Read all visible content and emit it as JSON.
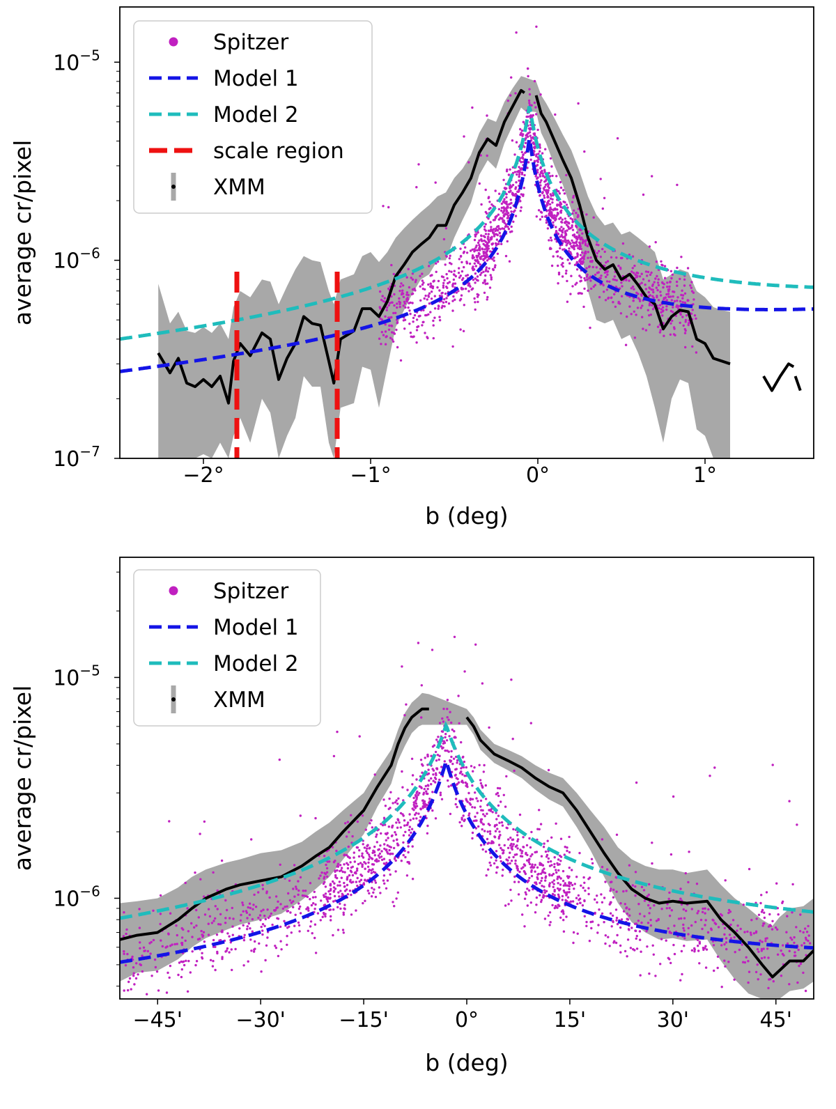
{
  "chart_data": [
    {
      "type": "line",
      "panel": "top",
      "xlabel": "b (deg)",
      "ylabel": "average cr/pixel",
      "xlim": [
        -2.5,
        1.65
      ],
      "ylim": [
        1e-07,
        1.9e-05
      ],
      "yscale": "log",
      "x_ticks": [
        -2,
        -1,
        0,
        1
      ],
      "x_tick_labels": [
        "−2°",
        "−1°",
        "0°",
        "1°"
      ],
      "y_tick_values": [
        1e-07,
        1e-06,
        1e-05
      ],
      "y_tick_labels": [
        {
          "base": "10",
          "exp": "−7"
        },
        {
          "base": "10",
          "exp": "−6"
        },
        {
          "base": "10",
          "exp": "−5"
        }
      ],
      "legend_position": "upper-left",
      "legend": [
        {
          "label": "Spitzer",
          "kind": "marker",
          "color": "#c020c0"
        },
        {
          "label": "Model 1",
          "kind": "dashed",
          "color": "#1414e6"
        },
        {
          "label": "Model 2",
          "kind": "dashed",
          "color": "#1fbcbc"
        },
        {
          "label": "scale region",
          "kind": "dashed",
          "color": "#ee1111"
        },
        {
          "label": "XMM",
          "kind": "errorbar",
          "color": "#000000"
        }
      ],
      "scale_region": [
        -1.8,
        -1.2
      ],
      "series": [
        {
          "name": "XMM",
          "color": "#000000",
          "segments": [
            {
              "x": [
                -2.27,
                -2.2,
                -2.15,
                -2.1,
                -2.05,
                -2.0,
                -1.95,
                -1.9,
                -1.85,
                -1.82,
                -1.78,
                -1.72,
                -1.65,
                -1.6,
                -1.55,
                -1.5,
                -1.45,
                -1.4,
                -1.35,
                -1.3,
                -1.25,
                -1.22,
                -1.18,
                -1.1,
                -1.05,
                -1.0,
                -0.95,
                -0.9,
                -0.85,
                -0.8,
                -0.75,
                -0.7,
                -0.65,
                -0.6,
                -0.55,
                -0.5,
                -0.45,
                -0.4,
                -0.35,
                -0.3,
                -0.25,
                -0.2,
                -0.15,
                -0.1,
                -0.08
              ],
              "y": [
                3.4e-07,
                2.7e-07,
                3.2e-07,
                2.4e-07,
                2.3e-07,
                2.5e-07,
                2.3e-07,
                2.6e-07,
                1.9e-07,
                3.1e-07,
                3.8e-07,
                3.3e-07,
                4.3e-07,
                4e-07,
                2.5e-07,
                3.2e-07,
                3.8e-07,
                5.2e-07,
                4.8e-07,
                4.7e-07,
                3.1e-07,
                2.4e-07,
                4e-07,
                4.4e-07,
                5.7e-07,
                5.7e-07,
                5.2e-07,
                6.2e-07,
                8.3e-07,
                9.5e-07,
                1.1e-06,
                1.2e-06,
                1.3e-06,
                1.5e-06,
                1.5e-06,
                1.9e-06,
                2.2e-06,
                2.6e-06,
                3.5e-06,
                4.1e-06,
                3.8e-06,
                5e-06,
                6e-06,
                7.2e-06,
                7e-06
              ]
            },
            {
              "x": [
                -0.01,
                0.02,
                0.05,
                0.1,
                0.15,
                0.2,
                0.25,
                0.3,
                0.35,
                0.4,
                0.45,
                0.5,
                0.55,
                0.6,
                0.65,
                0.7,
                0.75,
                0.8,
                0.85,
                0.9,
                0.95,
                1.0,
                1.05,
                1.1,
                1.15
              ],
              "y": [
                6.8e-06,
                5.5e-06,
                5e-06,
                4e-06,
                3.2e-06,
                2.6e-06,
                1.9e-06,
                1.3e-06,
                1e-06,
                9e-07,
                9.5e-07,
                8e-07,
                8.5e-07,
                7.5e-07,
                6.5e-07,
                6e-07,
                4.5e-07,
                5.2e-07,
                5.6e-07,
                5.5e-07,
                4e-07,
                3.8e-07,
                3.2e-07,
                3.1e-07,
                3e-07
              ]
            },
            {
              "x": [
                1.35,
                1.4,
                1.45,
                1.5,
                1.53
              ],
              "y": [
                2.6e-07,
                2.2e-07,
                2.6e-07,
                3e-07,
                2.9e-07
              ]
            },
            {
              "x": [
                1.54,
                1.57
              ],
              "y": [
                2.6e-07,
                2.2e-07
              ]
            }
          ]
        },
        {
          "name": "XMM error band",
          "color": "#a8a8a8",
          "x": [
            -2.27,
            -2.2,
            -2.15,
            -2.1,
            -2.05,
            -2.0,
            -1.95,
            -1.9,
            -1.85,
            -1.82,
            -1.78,
            -1.72,
            -1.65,
            -1.6,
            -1.55,
            -1.5,
            -1.45,
            -1.4,
            -1.35,
            -1.3,
            -1.25,
            -1.22,
            -1.18,
            -1.1,
            -1.05,
            -1.0,
            -0.95,
            -0.9,
            -0.85,
            -0.8,
            -0.75,
            -0.7,
            -0.65,
            -0.6,
            -0.55,
            -0.5,
            -0.45,
            -0.4,
            -0.35,
            -0.3,
            -0.25,
            -0.2,
            -0.15,
            -0.1,
            -0.08,
            -0.01,
            0.02,
            0.05,
            0.1,
            0.15,
            0.2,
            0.25,
            0.3,
            0.35,
            0.4,
            0.45,
            0.5,
            0.55,
            0.6,
            0.65,
            0.7,
            0.75,
            0.8,
            0.85,
            0.9,
            0.95,
            1.0,
            1.05,
            1.1,
            1.15
          ],
          "upper": [
            7.6e-07,
            4.8e-07,
            5.5e-07,
            4.4e-07,
            4.3e-07,
            4.6e-07,
            4.3e-07,
            4.8e-07,
            4e-07,
            5.8e-07,
            7e-07,
            6.5e-07,
            8e-07,
            7.8e-07,
            6e-07,
            7.4e-07,
            9e-07,
            1.05e-06,
            1e-06,
            9.8e-07,
            7e-07,
            6e-07,
            8e-07,
            8.5e-07,
            1.05e-06,
            1.1e-06,
            9.8e-07,
            1.1e-06,
            1.3e-06,
            1.45e-06,
            1.6e-06,
            1.75e-06,
            1.9e-06,
            2.1e-06,
            2.2e-06,
            2.6e-06,
            2.9e-06,
            3.4e-06,
            4.4e-06,
            5.2e-06,
            5e-06,
            6.3e-06,
            7.4e-06,
            8.5e-06,
            8.4e-06,
            8e-06,
            6.8e-06,
            6.2e-06,
            5.2e-06,
            4.3e-06,
            3.6e-06,
            2.8e-06,
            2.1e-06,
            1.7e-06,
            1.5e-06,
            1.55e-06,
            1.35e-06,
            1.4e-06,
            1.3e-06,
            1.2e-06,
            1.1e-06,
            8e-07,
            8.5e-07,
            9e-07,
            8.7e-07,
            7e-07,
            6.5e-07,
            5.8e-07,
            5.6e-07,
            5.5e-07
          ],
          "lower": [
            1e-07,
            1e-07,
            1e-07,
            1e-07,
            1e-07,
            1.05e-07,
            1e-07,
            1.2e-07,
            1e-07,
            1.3e-07,
            1.6e-07,
            1.2e-07,
            2e-07,
            1.7e-07,
            1e-07,
            1.3e-07,
            1.6e-07,
            2.6e-07,
            2.3e-07,
            2.3e-07,
            1.2e-07,
            1e-07,
            1.8e-07,
            1.9e-07,
            2.9e-07,
            2.8e-07,
            1.8e-07,
            2.9e-07,
            4.6e-07,
            5.6e-07,
            6.8e-07,
            8e-07,
            8.5e-07,
            1e-06,
            1e-06,
            1.3e-06,
            1.6e-06,
            1.95e-06,
            2.7e-06,
            3.2e-06,
            2.9e-06,
            3.9e-06,
            4.8e-06,
            5.9e-06,
            5.7e-06,
            5.6e-06,
            4.4e-06,
            3.9e-06,
            3e-06,
            2.4e-06,
            1.8e-06,
            1.25e-06,
            7e-07,
            5e-07,
            4.8e-07,
            5e-07,
            4e-07,
            4.2e-07,
            3.4e-07,
            2.6e-07,
            1.8e-07,
            1.2e-07,
            2e-07,
            2.5e-07,
            2.4e-07,
            1.4e-07,
            1.3e-07,
            1e-07,
            1e-07,
            1e-07
          ]
        },
        {
          "name": "Model 1",
          "color": "#1414e6",
          "peak": 4.2e-06,
          "x0": -0.05,
          "xscale": 0.064,
          "power": 0.52,
          "floor": 3.35e-07,
          "floor_slope": 0.088
        },
        {
          "name": "Model 2",
          "color": "#1fbcbc",
          "peak": 6.1e-06,
          "x0": -0.05,
          "xscale": 0.064,
          "power": 0.44,
          "floor": 3.35e-07,
          "floor_slope": 0.088
        },
        {
          "name": "Spitzer",
          "color": "#c020c0",
          "x_range": [
            -0.95,
            0.95
          ],
          "median_of": "Model 1",
          "bias": 1.04,
          "scatter_dex": 0.1,
          "count": 1700
        }
      ]
    },
    {
      "type": "line",
      "panel": "bottom",
      "xlabel": "b (deg)",
      "ylabel": "average cr/pixel",
      "xlim": [
        -50.5,
        50.5
      ],
      "ylim": [
        3.5e-07,
        3.5e-05
      ],
      "yscale": "log",
      "x_ticks": [
        -45,
        -30,
        -15,
        0,
        15,
        30,
        45
      ],
      "x_tick_labels": [
        "−45'",
        "−30'",
        "−15'",
        "0°",
        "15'",
        "30'",
        "45'"
      ],
      "y_tick_values": [
        1e-06,
        1e-05
      ],
      "y_tick_labels": [
        {
          "base": "10",
          "exp": "−6"
        },
        {
          "base": "10",
          "exp": "−5"
        }
      ],
      "legend_position": "upper-left",
      "legend": [
        {
          "label": "Spitzer",
          "kind": "marker",
          "color": "#c020c0"
        },
        {
          "label": "Model 1",
          "kind": "dashed",
          "color": "#1414e6"
        },
        {
          "label": "Model 2",
          "kind": "dashed",
          "color": "#1fbcbc"
        },
        {
          "label": "XMM",
          "kind": "errorbar",
          "color": "#000000"
        }
      ],
      "series": [
        {
          "name": "XMM",
          "color": "#000000",
          "segments": [
            {
              "x": [
                -50.5,
                -48,
                -45,
                -42,
                -40,
                -38,
                -35,
                -33,
                -30,
                -27,
                -24,
                -22,
                -20,
                -18,
                -15,
                -13,
                -11,
                -10,
                -9,
                -8,
                -7,
                -6.5,
                -5.5
              ],
              "y": [
                6.5e-07,
                6.8e-07,
                7e-07,
                8e-07,
                9e-07,
                1e-06,
                1.1e-06,
                1.15e-06,
                1.2e-06,
                1.25e-06,
                1.4e-06,
                1.55e-06,
                1.7e-06,
                2e-06,
                2.5e-06,
                3.2e-06,
                4e-06,
                5e-06,
                5.9e-06,
                6.6e-06,
                7e-06,
                7.2e-06,
                7.2e-06
              ]
            },
            {
              "x": [
                0,
                1,
                2,
                4,
                6,
                8,
                10,
                12,
                14,
                16,
                18,
                20,
                22,
                24,
                26,
                28,
                30,
                32,
                35,
                37,
                39,
                41,
                43,
                44.5,
                45.5,
                47,
                49,
                50.5
              ],
              "y": [
                6.6e-06,
                6e-06,
                5.2e-06,
                4.5e-06,
                4.2e-06,
                3.9e-06,
                3.5e-06,
                3.2e-06,
                3e-06,
                2.5e-06,
                2e-06,
                1.6e-06,
                1.3e-06,
                1.1e-06,
                1e-06,
                9.5e-07,
                9.7e-07,
                9.5e-07,
                9.7e-07,
                8e-07,
                7e-07,
                6e-07,
                5e-07,
                4.4e-07,
                4.7e-07,
                5.2e-07,
                5.2e-07,
                5.8e-07
              ]
            }
          ]
        },
        {
          "name": "XMM error band",
          "color": "#a8a8a8",
          "x": [
            -50.5,
            -48,
            -45,
            -42,
            -40,
            -38,
            -35,
            -33,
            -30,
            -27,
            -24,
            -22,
            -20,
            -18,
            -15,
            -13,
            -11,
            -10,
            -9,
            -8,
            -7,
            -6.5,
            -5.5,
            0,
            1,
            2,
            4,
            6,
            8,
            10,
            12,
            14,
            16,
            18,
            20,
            22,
            24,
            26,
            28,
            30,
            32,
            35,
            37,
            39,
            41,
            43,
            44.5,
            45.5,
            47,
            49,
            50.5
          ],
          "upper": [
            9.5e-07,
            9.7e-07,
            1e-06,
            1.12e-06,
            1.25e-06,
            1.35e-06,
            1.45e-06,
            1.5e-06,
            1.6e-06,
            1.65e-06,
            1.8e-06,
            2e-06,
            2.2e-06,
            2.5e-06,
            3e-06,
            3.8e-06,
            4.7e-06,
            5.8e-06,
            6.9e-06,
            7.7e-06,
            8.2e-06,
            8.5e-06,
            8.4e-06,
            7.2e-06,
            6.6e-06,
            5.8e-06,
            5e-06,
            4.7e-06,
            4.4e-06,
            4e-06,
            3.7e-06,
            3.5e-06,
            3e-06,
            2.5e-06,
            2.1e-06,
            1.7e-06,
            1.5e-06,
            1.4e-06,
            1.35e-06,
            1.35e-06,
            1.3e-06,
            1.35e-06,
            1.15e-06,
            1e-06,
            9e-07,
            8e-07,
            7.5e-07,
            8.2e-07,
            9e-07,
            9.2e-07,
            1e-06
          ],
          "lower": [
            4.2e-07,
            4.6e-07,
            4.7e-07,
            5.3e-07,
            6e-07,
            6.6e-07,
            7.2e-07,
            7.6e-07,
            8e-07,
            8.5e-07,
            9.8e-07,
            1.1e-06,
            1.25e-06,
            1.5e-06,
            1.95e-06,
            2.6e-06,
            3.3e-06,
            4.2e-06,
            4.9e-06,
            5.6e-06,
            6e-06,
            6.1e-06,
            6.1e-06,
            6.1e-06,
            5.5e-06,
            4.7e-06,
            4.1e-06,
            3.8e-06,
            3.5e-06,
            3.1e-06,
            2.8e-06,
            2.6e-06,
            2.1e-06,
            1.65e-06,
            1.25e-06,
            9.5e-07,
            7.8e-07,
            7e-07,
            6.5e-07,
            6.6e-07,
            6.4e-07,
            6.5e-07,
            5.2e-07,
            4.3e-07,
            3.7e-07,
            3.5e-07,
            3.5e-07,
            3.5e-07,
            3.8e-07,
            3.9e-07,
            4.2e-07
          ]
        },
        {
          "name": "Model 1",
          "color": "#1414e6",
          "peak": 4.2e-06,
          "x0": -3.0,
          "xscale": 3.84,
          "power": 0.52,
          "floor": 3.35e-07,
          "floor_slope": 0.088,
          "unit_scale": 60
        },
        {
          "name": "Model 2",
          "color": "#1fbcbc",
          "peak": 6.1e-06,
          "x0": -3.0,
          "xscale": 3.84,
          "power": 0.44,
          "floor": 3.35e-07,
          "floor_slope": 0.088,
          "unit_scale": 60
        },
        {
          "name": "Spitzer",
          "color": "#c020c0",
          "x_range": [
            -50,
            50
          ],
          "median_of": "Model 1",
          "bias": 1.04,
          "scatter_dex": 0.1,
          "count": 1900
        }
      ]
    }
  ]
}
